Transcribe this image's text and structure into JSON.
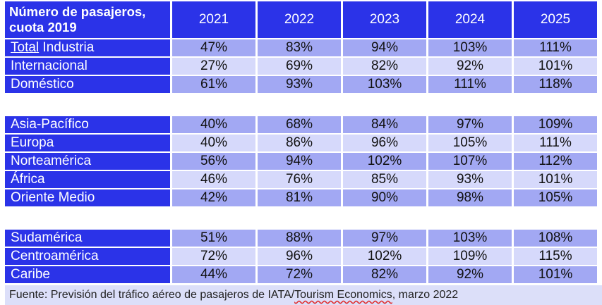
{
  "chart_data": {
    "type": "table",
    "title_line1": "Número de pasajeros,",
    "title_line2": "cuota 2019",
    "columns": [
      "2021",
      "2022",
      "2023",
      "2024",
      "2025"
    ],
    "groups": [
      {
        "rows": [
          {
            "label_a": "Total",
            "label_b": " Industria",
            "values": [
              "47%",
              "83%",
              "94%",
              "103%",
              "111%"
            ]
          },
          {
            "label": "Internacional",
            "values": [
              "27%",
              "69%",
              "82%",
              "92%",
              "101%"
            ]
          },
          {
            "label": "Doméstico",
            "values": [
              "61%",
              "93%",
              "103%",
              "111%",
              "118%"
            ]
          }
        ]
      },
      {
        "rows": [
          {
            "label": "Asia-Pacífico",
            "values": [
              "40%",
              "68%",
              "84%",
              "97%",
              "109%"
            ]
          },
          {
            "label": "Europa",
            "values": [
              "40%",
              "86%",
              "96%",
              "105%",
              "111%"
            ]
          },
          {
            "label": "Norteamérica",
            "values": [
              "56%",
              "94%",
              "102%",
              "107%",
              "112%"
            ]
          },
          {
            "label": "África",
            "values": [
              "46%",
              "76%",
              "85%",
              "93%",
              "101%"
            ]
          },
          {
            "label": "Oriente Medio",
            "values": [
              "42%",
              "81%",
              "90%",
              "98%",
              "105%"
            ]
          }
        ]
      },
      {
        "rows": [
          {
            "label": "Sudamérica",
            "values": [
              "51%",
              "88%",
              "97%",
              "103%",
              "108%"
            ]
          },
          {
            "label": "Centroamérica",
            "values": [
              "72%",
              "96%",
              "102%",
              "109%",
              "115%"
            ]
          },
          {
            "label": "Caribe",
            "values": [
              "44%",
              "72%",
              "82%",
              "92%",
              "101%"
            ]
          }
        ]
      }
    ],
    "source_a": "Fuente: Previsión del tráfico aéreo de pasajeros de IATA/",
    "source_b": "Tourism Economics",
    "source_c": ", marzo 2022",
    "colors": {
      "header": "#2b33e8",
      "row_dark": "#a2a8f3",
      "row_light": "#d6d9fb",
      "source_bg": "#dcdff9"
    }
  }
}
